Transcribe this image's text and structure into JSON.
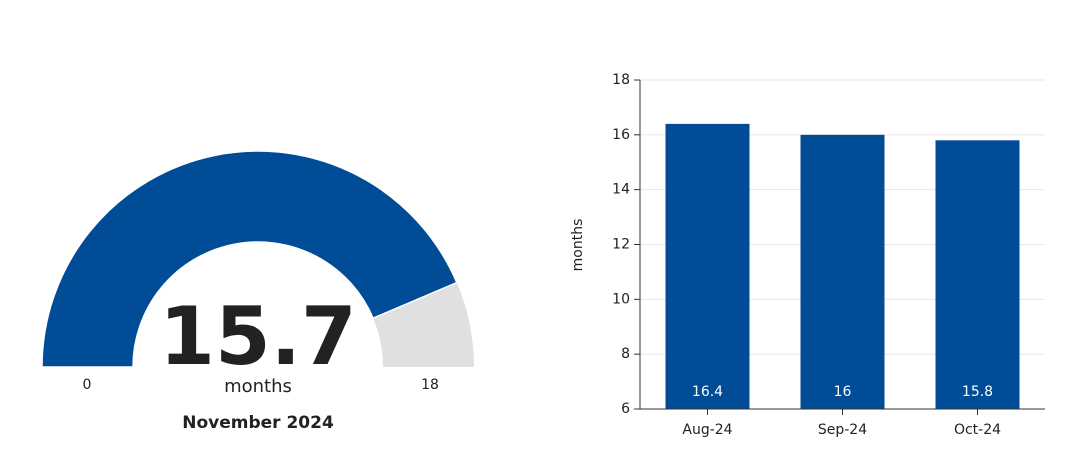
{
  "chart_data": [
    {
      "type": "gauge",
      "value": 15.7,
      "range": [
        0,
        18
      ],
      "unit": "months",
      "subtitle": "November 2024",
      "color": "#004c97",
      "track_color": "#e0e0e0"
    },
    {
      "type": "bar",
      "categories": [
        "Aug-24",
        "Sep-24",
        "Oct-24"
      ],
      "values": [
        16.4,
        16,
        15.8
      ],
      "color": "#004c97",
      "y_label": "months",
      "ylim": [
        6,
        18
      ],
      "yticks": [
        6,
        8,
        10,
        12,
        14,
        16,
        18
      ],
      "grid": true
    }
  ]
}
